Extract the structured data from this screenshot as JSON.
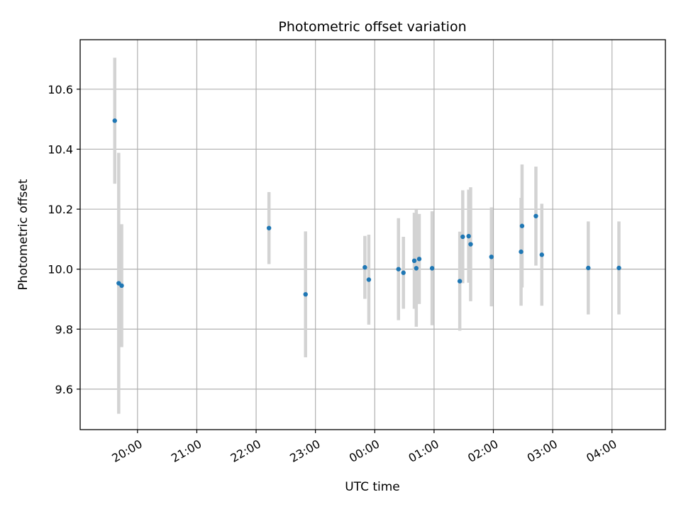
{
  "chart_data": {
    "type": "scatter",
    "title": "Photometric offset variation",
    "xlabel": "UTC time",
    "ylabel": "Photometric offset",
    "x_ticks": [
      "20:00",
      "21:00",
      "22:00",
      "23:00",
      "00:00",
      "01:00",
      "02:00",
      "03:00",
      "04:00"
    ],
    "y_ticks": [
      "9.6",
      "9.8",
      "10.0",
      "10.2",
      "10.4",
      "10.6"
    ],
    "xlim": [
      "19:02",
      "04:54"
    ],
    "ylim": [
      9.465,
      10.765
    ],
    "grid": true,
    "colors": {
      "points": "#1f77b4",
      "error_bars": "#d3d3d3",
      "grid": "#b0b0b0"
    },
    "points": [
      {
        "x": "19:37",
        "y": 10.495,
        "err": 0.21
      },
      {
        "x": "19:41",
        "y": 9.953,
        "err": 0.435
      },
      {
        "x": "19:44",
        "y": 9.945,
        "err": 0.205
      },
      {
        "x": "22:13",
        "y": 10.137,
        "err": 0.12
      },
      {
        "x": "22:50",
        "y": 9.916,
        "err": 0.21
      },
      {
        "x": "23:50",
        "y": 10.006,
        "err": 0.105
      },
      {
        "x": "23:54",
        "y": 9.965,
        "err": 0.15
      },
      {
        "x": "00:24",
        "y": 10.0,
        "err": 0.17
      },
      {
        "x": "00:29",
        "y": 9.988,
        "err": 0.12
      },
      {
        "x": "00:40",
        "y": 10.028,
        "err": 0.16
      },
      {
        "x": "00:42",
        "y": 10.003,
        "err": 0.195
      },
      {
        "x": "00:45",
        "y": 10.034,
        "err": 0.15
      },
      {
        "x": "00:58",
        "y": 10.003,
        "err": 0.19
      },
      {
        "x": "01:26",
        "y": 9.96,
        "err": 0.165
      },
      {
        "x": "01:29",
        "y": 10.108,
        "err": 0.155
      },
      {
        "x": "01:35",
        "y": 10.11,
        "err": 0.155
      },
      {
        "x": "01:37",
        "y": 10.083,
        "err": 0.19
      },
      {
        "x": "01:58",
        "y": 10.041,
        "err": 0.165
      },
      {
        "x": "02:28",
        "y": 10.058,
        "err": 0.18
      },
      {
        "x": "02:29",
        "y": 10.144,
        "err": 0.205
      },
      {
        "x": "02:43",
        "y": 10.177,
        "err": 0.165
      },
      {
        "x": "02:49",
        "y": 10.048,
        "err": 0.17
      },
      {
        "x": "03:36",
        "y": 10.004,
        "err": 0.155
      },
      {
        "x": "04:07",
        "y": 10.004,
        "err": 0.155
      }
    ]
  }
}
